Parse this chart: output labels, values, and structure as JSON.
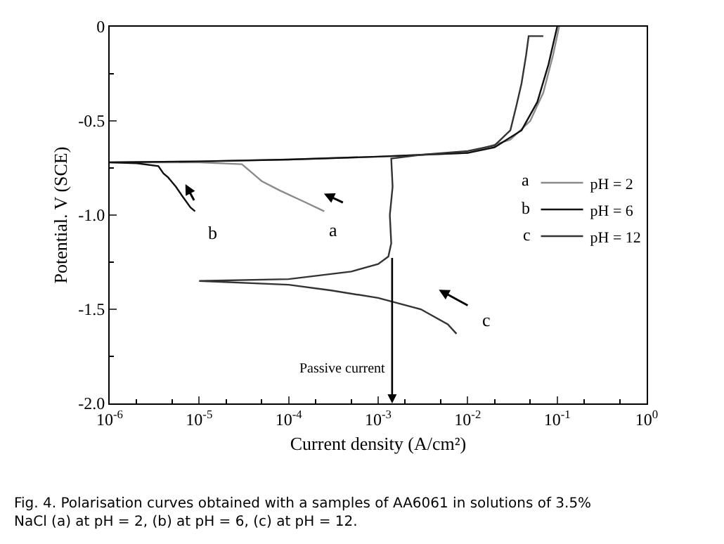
{
  "chart_data": {
    "type": "line",
    "xlabel": "Current density (A/cm²)",
    "ylabel": "Potential. V (SCE)",
    "log": "x",
    "xlim": [
      1e-06,
      1
    ],
    "xticks": [
      {
        "value": 1e-06,
        "label": "10$^{-6}$"
      },
      {
        "value": 1e-05,
        "label": "10$^{-5}$"
      },
      {
        "value": 0.0001,
        "label": "10$^{-4}$"
      },
      {
        "value": 0.001,
        "label": "10$^{-3}$"
      },
      {
        "value": 0.01,
        "label": "10$^{-2}$"
      },
      {
        "value": 0.1,
        "label": "10$^{-1}$"
      },
      {
        "value": 1,
        "label": "10$^{0}$"
      }
    ],
    "ylim": [
      -2.0,
      0
    ],
    "yticks": [
      {
        "value": -2.0,
        "label": "-2.0"
      },
      {
        "value": -1.5,
        "label": "-1.5"
      },
      {
        "value": -1.0,
        "label": "-1.0"
      },
      {
        "value": -0.5,
        "label": "-0.5"
      },
      {
        "value": 0,
        "label": "0"
      }
    ],
    "legend": "right",
    "marker": "none",
    "line_style": "solid",
    "series": [
      {
        "name": "pH = 2",
        "color": "#8a8a8a",
        "x": [
          0.00025,
          0.00015,
          8e-05,
          5e-05,
          4e-05,
          3e-05,
          1e-05,
          1e-06,
          1e-05,
          0.0001,
          0.001,
          0.01,
          0.03,
          0.05,
          0.07,
          0.09,
          0.105
        ],
        "values": [
          -0.98,
          -0.93,
          -0.87,
          -0.82,
          -0.78,
          -0.73,
          -0.72,
          -0.72,
          -0.715,
          -0.705,
          -0.69,
          -0.67,
          -0.6,
          -0.5,
          -0.35,
          -0.15,
          0.0
        ]
      },
      {
        "name": "pH = 6",
        "color": "#111111",
        "x": [
          9e-06,
          8e-06,
          6.5e-06,
          5.5e-06,
          4.5e-06,
          4e-06,
          3.5e-06,
          2e-06,
          1e-06,
          1e-05,
          0.0001,
          0.001,
          0.01,
          0.02,
          0.04,
          0.06,
          0.08,
          0.1
        ],
        "values": [
          -0.98,
          -0.96,
          -0.9,
          -0.85,
          -0.8,
          -0.78,
          -0.74,
          -0.725,
          -0.72,
          -0.715,
          -0.705,
          -0.69,
          -0.67,
          -0.64,
          -0.55,
          -0.4,
          -0.2,
          0.0
        ]
      },
      {
        "name": "pH = 12",
        "color": "#333333",
        "x": [
          0.0075,
          0.006,
          0.003,
          0.001,
          0.0003,
          0.0001,
          1e-05,
          0.0001,
          0.0005,
          0.001,
          0.0013,
          0.0014,
          0.00135,
          0.00145,
          0.0014,
          0.003,
          0.01,
          0.02,
          0.03,
          0.035,
          0.04,
          0.045,
          0.048,
          0.07
        ],
        "values": [
          -1.63,
          -1.58,
          -1.5,
          -1.44,
          -1.4,
          -1.37,
          -1.35,
          -1.34,
          -1.3,
          -1.26,
          -1.22,
          -1.15,
          -1.0,
          -0.85,
          -0.7,
          -0.68,
          -0.66,
          -0.63,
          -0.55,
          -0.42,
          -0.3,
          -0.15,
          -0.05,
          -0.05
        ]
      }
    ],
    "annotations": [
      "a",
      "b",
      "c",
      "Passive current",
      "a",
      "b",
      "c",
      "Fig. 4. Polarisation curves obtained with a samples of AA6061 in solutions of 3.5% NaCl (a) at pH = 2, (b) at pH = 6, (c) at pH = 12."
    ]
  }
}
